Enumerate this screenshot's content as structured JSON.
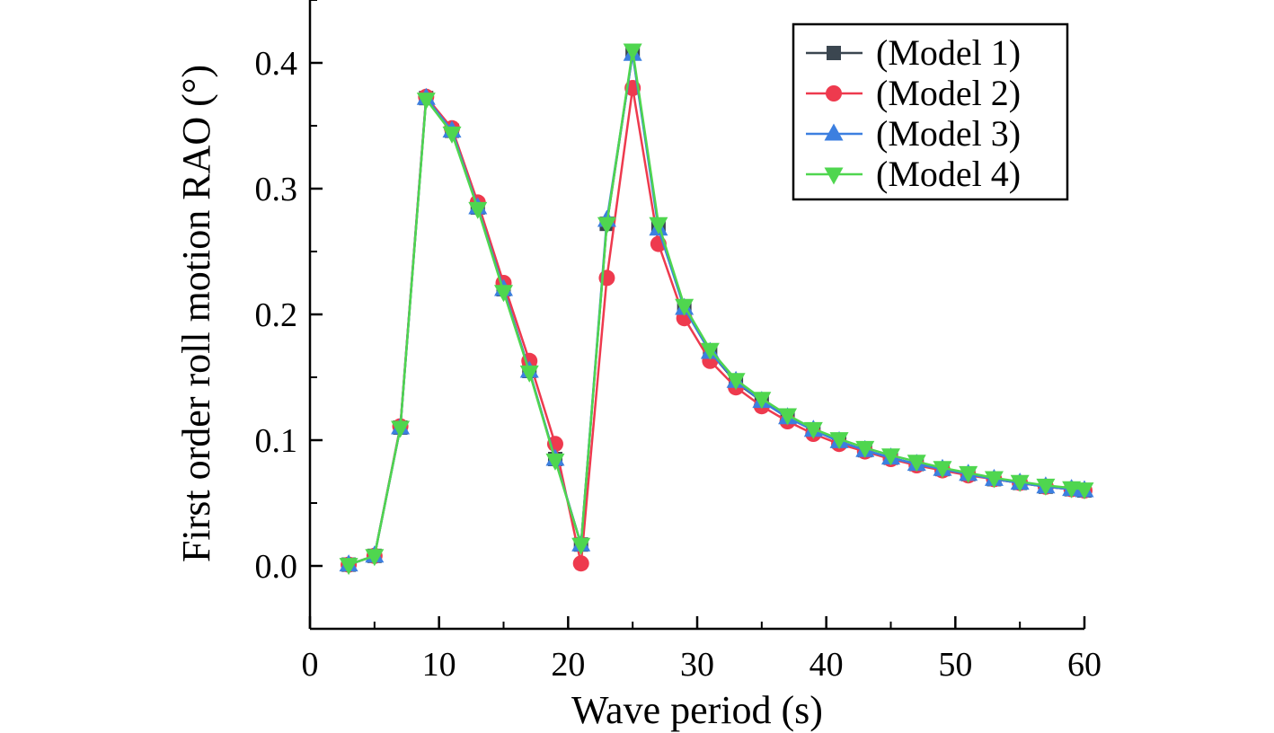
{
  "chart_data": {
    "type": "line",
    "title": "",
    "xlabel": "Wave period (s)",
    "ylabel": "First order roll motion RAO (°)",
    "xlim": [
      0,
      60
    ],
    "ylim": [
      -0.05,
      0.45
    ],
    "xticks": [
      0,
      10,
      20,
      30,
      40,
      50,
      60
    ],
    "yticks": [
      0.0,
      0.1,
      0.2,
      0.3,
      0.4
    ],
    "xtick_labels": [
      "0",
      "10",
      "20",
      "30",
      "40",
      "50",
      "60"
    ],
    "ytick_labels": [
      "0.0",
      "0.1",
      "0.2",
      "0.3",
      "0.4"
    ],
    "grid": false,
    "legend_position": "top-right",
    "x": [
      3,
      5,
      7,
      9,
      11,
      13,
      15,
      17,
      19,
      21,
      23,
      25,
      27,
      29,
      31,
      33,
      35,
      37,
      39,
      41,
      43,
      45,
      47,
      49,
      51,
      53,
      55,
      57,
      59,
      60
    ],
    "series": [
      {
        "name": "(Model 1)",
        "color": "#3b4650",
        "marker": "square",
        "values": [
          0.001,
          0.008,
          0.11,
          0.372,
          0.346,
          0.285,
          0.22,
          0.155,
          0.085,
          0.017,
          0.272,
          0.408,
          0.27,
          0.205,
          0.17,
          0.146,
          0.131,
          0.118,
          0.108,
          0.099,
          0.092,
          0.086,
          0.081,
          0.077,
          0.073,
          0.069,
          0.066,
          0.063,
          0.061,
          0.06
        ]
      },
      {
        "name": "(Model 2)",
        "color": "#ee3a4e",
        "marker": "circle",
        "values": [
          0.001,
          0.008,
          0.111,
          0.373,
          0.348,
          0.289,
          0.225,
          0.163,
          0.097,
          0.002,
          0.229,
          0.38,
          0.256,
          0.197,
          0.163,
          0.142,
          0.127,
          0.115,
          0.105,
          0.097,
          0.091,
          0.085,
          0.08,
          0.076,
          0.072,
          0.069,
          0.066,
          0.063,
          0.061,
          0.06
        ]
      },
      {
        "name": "(Model 3)",
        "color": "#3c7fe0",
        "marker": "triangle-up",
        "values": [
          0.001,
          0.008,
          0.11,
          0.372,
          0.346,
          0.285,
          0.22,
          0.155,
          0.085,
          0.017,
          0.275,
          0.407,
          0.268,
          0.205,
          0.17,
          0.147,
          0.131,
          0.118,
          0.108,
          0.099,
          0.092,
          0.086,
          0.081,
          0.077,
          0.073,
          0.069,
          0.066,
          0.063,
          0.061,
          0.06
        ]
      },
      {
        "name": "(Model 4)",
        "color": "#4fd64f",
        "marker": "triangle-down",
        "values": [
          0.001,
          0.008,
          0.11,
          0.371,
          0.344,
          0.284,
          0.218,
          0.154,
          0.084,
          0.017,
          0.272,
          0.41,
          0.272,
          0.207,
          0.172,
          0.148,
          0.133,
          0.12,
          0.109,
          0.101,
          0.094,
          0.088,
          0.083,
          0.078,
          0.074,
          0.07,
          0.067,
          0.064,
          0.062,
          0.061
        ]
      }
    ]
  }
}
